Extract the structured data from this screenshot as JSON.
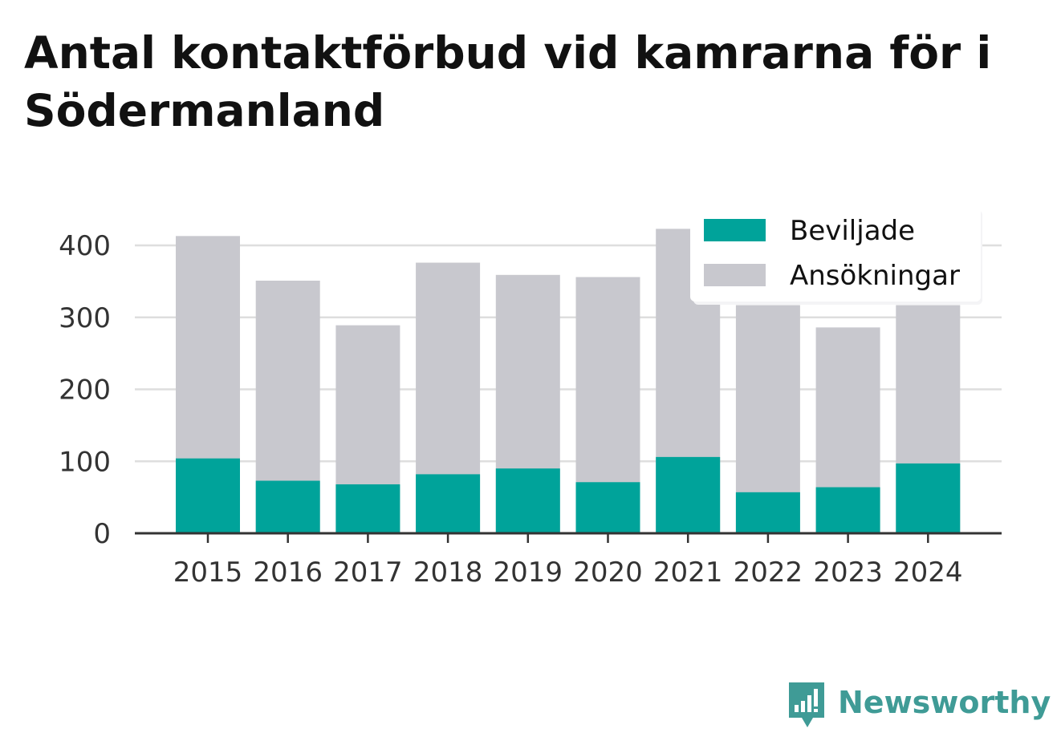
{
  "title": "Antal kontaktförbud vid kamrarna för i Södermanland",
  "brand": {
    "name": "Newsworthy",
    "icon": "newsworthy-logo-icon",
    "color": "#3f9b96"
  },
  "chart_data": {
    "type": "bar",
    "stacked": false,
    "overlapping": true,
    "categories": [
      "2015",
      "2016",
      "2017",
      "2018",
      "2019",
      "2020",
      "2021",
      "2022",
      "2023",
      "2024"
    ],
    "series": [
      {
        "name": "Beviljade",
        "color": "#00a39a",
        "values": [
          104,
          73,
          68,
          82,
          90,
          71,
          106,
          57,
          64,
          97
        ]
      },
      {
        "name": "Ansökningar",
        "color": "#c8c8ce",
        "values": [
          413,
          351,
          289,
          376,
          359,
          356,
          423,
          317,
          286,
          317
        ]
      }
    ],
    "y_ticks": [
      "0",
      "100",
      "200",
      "300",
      "400"
    ],
    "ylim": [
      0,
      450
    ],
    "grid": true,
    "legend": "top-right"
  }
}
